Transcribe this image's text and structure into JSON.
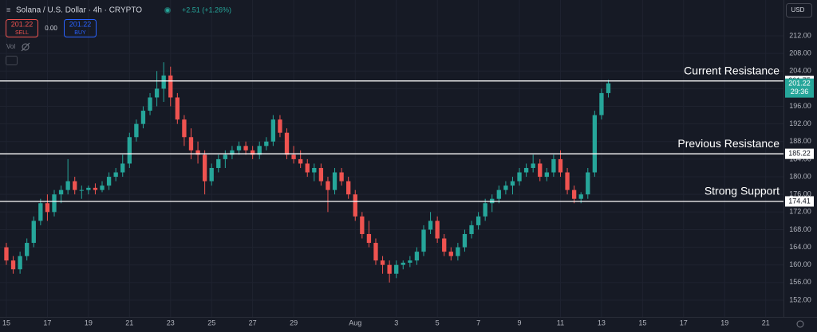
{
  "header": {
    "symbol": "Solana / U.S. Dollar · 4h · CRYPTO",
    "change": "+2.51 (+1.26%)",
    "sell_price": 201.22,
    "sell_label": "SELL",
    "spread": "0.00",
    "buy_price": 201.22,
    "buy_label": "BUY",
    "volume": "Vol",
    "currency": "USD"
  },
  "chart_data": {
    "type": "candlestick",
    "candles": [
      [
        164,
        165,
        160,
        161
      ],
      [
        161,
        162,
        158,
        159
      ],
      [
        159,
        163,
        158,
        162
      ],
      [
        162,
        166,
        161,
        165
      ],
      [
        165,
        171,
        164,
        170
      ],
      [
        170,
        175,
        169,
        174
      ],
      [
        174,
        176,
        170,
        172
      ],
      [
        172,
        177,
        171,
        176
      ],
      [
        176,
        178,
        174,
        177
      ],
      [
        177,
        184,
        176,
        179
      ],
      [
        179,
        180,
        176,
        177
      ],
      [
        177,
        178,
        175,
        177
      ],
      [
        177,
        178,
        176,
        177.5
      ],
      [
        177.5,
        178.5,
        176,
        177
      ],
      [
        177,
        179,
        176.5,
        178
      ],
      [
        178,
        181,
        177,
        180
      ],
      [
        180,
        182,
        179,
        181
      ],
      [
        181,
        185,
        180,
        183
      ],
      [
        183,
        190,
        182,
        189
      ],
      [
        189,
        193,
        188,
        192
      ],
      [
        192,
        196,
        191,
        195
      ],
      [
        195,
        199,
        194,
        198
      ],
      [
        198,
        204,
        196,
        200
      ],
      [
        200,
        206,
        197,
        203
      ],
      [
        203,
        205,
        196,
        198
      ],
      [
        198,
        199,
        192,
        193
      ],
      [
        193,
        194,
        187,
        189
      ],
      [
        189,
        191,
        184,
        186
      ],
      [
        186,
        188,
        183,
        185
      ],
      [
        185,
        186,
        176,
        179
      ],
      [
        179,
        183,
        178,
        182
      ],
      [
        182,
        185,
        181,
        184
      ],
      [
        184,
        186,
        182,
        185
      ],
      [
        185,
        187,
        184,
        186
      ],
      [
        186,
        188,
        185,
        187
      ],
      [
        187,
        188,
        185,
        186
      ],
      [
        186,
        187,
        184,
        185
      ],
      [
        185,
        188,
        184,
        187
      ],
      [
        187,
        189,
        186,
        188
      ],
      [
        188,
        194,
        187,
        193
      ],
      [
        193,
        194,
        189,
        190
      ],
      [
        190,
        191,
        184,
        185
      ],
      [
        185,
        187,
        183,
        184
      ],
      [
        184,
        186,
        182,
        183
      ],
      [
        183,
        184,
        180,
        181
      ],
      [
        181,
        183,
        179,
        182
      ],
      [
        182,
        183,
        178,
        179
      ],
      [
        179,
        180,
        172,
        177
      ],
      [
        177,
        182,
        176,
        181
      ],
      [
        181,
        182,
        178,
        179
      ],
      [
        179,
        180,
        175,
        176
      ],
      [
        176,
        177,
        170,
        171
      ],
      [
        171,
        172,
        166,
        167
      ],
      [
        167,
        170,
        164,
        165
      ],
      [
        165,
        166,
        160,
        161
      ],
      [
        161,
        162,
        158,
        160
      ],
      [
        160,
        161,
        156,
        158
      ],
      [
        158,
        161,
        157,
        160
      ],
      [
        160,
        161,
        159,
        160.5
      ],
      [
        160.5,
        162,
        159.5,
        161
      ],
      [
        161,
        164,
        160,
        163
      ],
      [
        163,
        169,
        162,
        168
      ],
      [
        168,
        172,
        167,
        170
      ],
      [
        170,
        171,
        165,
        166
      ],
      [
        166,
        167,
        162,
        163
      ],
      [
        163,
        164,
        161,
        162
      ],
      [
        162,
        165,
        161,
        164
      ],
      [
        164,
        168,
        163,
        167
      ],
      [
        167,
        170,
        166,
        169
      ],
      [
        169,
        172,
        168,
        171
      ],
      [
        171,
        175,
        170,
        174
      ],
      [
        174,
        176,
        172,
        175
      ],
      [
        175,
        178,
        174,
        177
      ],
      [
        177,
        179,
        176,
        178
      ],
      [
        178,
        180,
        176,
        179
      ],
      [
        179,
        182,
        178,
        181
      ],
      [
        181,
        183,
        180,
        182
      ],
      [
        182,
        185,
        181,
        183
      ],
      [
        183,
        184,
        179,
        180
      ],
      [
        180,
        182,
        179,
        181
      ],
      [
        181,
        185,
        180,
        184
      ],
      [
        184,
        186,
        180,
        181
      ],
      [
        181,
        182,
        176,
        177
      ],
      [
        177,
        178,
        174,
        175
      ],
      [
        175,
        176.5,
        174,
        176
      ],
      [
        176,
        182,
        175,
        181
      ],
      [
        181,
        195,
        180,
        194
      ],
      [
        194,
        200,
        193,
        199
      ],
      [
        199,
        202,
        198,
        201.22
      ]
    ],
    "colors": {
      "up": "#26a69a",
      "down": "#ef5350"
    },
    "xlim": [
      -0.93,
      113.6
    ],
    "xticks": [
      {
        "value": 0,
        "label": "15"
      },
      {
        "value": 6,
        "label": "17"
      },
      {
        "value": 12,
        "label": "19"
      },
      {
        "value": 18,
        "label": "21"
      },
      {
        "value": 24,
        "label": "23"
      },
      {
        "value": 30,
        "label": "25"
      },
      {
        "value": 36,
        "label": "27"
      },
      {
        "value": 42,
        "label": "29"
      },
      {
        "value": 51,
        "label": "Aug"
      },
      {
        "value": 57,
        "label": "3"
      },
      {
        "value": 63,
        "label": "5"
      },
      {
        "value": 69,
        "label": "7"
      },
      {
        "value": 75,
        "label": "9"
      },
      {
        "value": 81,
        "label": "11"
      },
      {
        "value": 87,
        "label": "13"
      },
      {
        "value": 93,
        "label": "15"
      },
      {
        "value": 99,
        "label": "17"
      },
      {
        "value": 105,
        "label": "19"
      },
      {
        "value": 111,
        "label": "21"
      }
    ],
    "ylim": [
      148.2,
      220.13
    ],
    "yticks": [
      {
        "value": 152,
        "label": "152.00"
      },
      {
        "value": 156,
        "label": "156.00"
      },
      {
        "value": 160,
        "label": "160.00"
      },
      {
        "value": 164,
        "label": "164.00"
      },
      {
        "value": 168,
        "label": "168.00"
      },
      {
        "value": 172,
        "label": "172.00"
      },
      {
        "value": 176,
        "label": "176.00"
      },
      {
        "value": 180,
        "label": "180.00"
      },
      {
        "value": 184,
        "label": "184.00"
      },
      {
        "value": 188,
        "label": "188.00"
      },
      {
        "value": 192,
        "label": "192.00"
      },
      {
        "value": 196,
        "label": "196.00"
      },
      {
        "value": 200,
        "label": "200.00"
      },
      {
        "value": 204,
        "label": "204.00"
      },
      {
        "value": 208,
        "label": "208.00"
      },
      {
        "value": 212,
        "label": "212.00"
      }
    ],
    "grid": true,
    "levels": [
      {
        "label": "Current Resistance",
        "value": 201.75
      },
      {
        "label": "Previous Resistance",
        "value": 185.22
      },
      {
        "label": "Strong Support",
        "value": 174.41
      }
    ],
    "countdown": "29:36"
  }
}
